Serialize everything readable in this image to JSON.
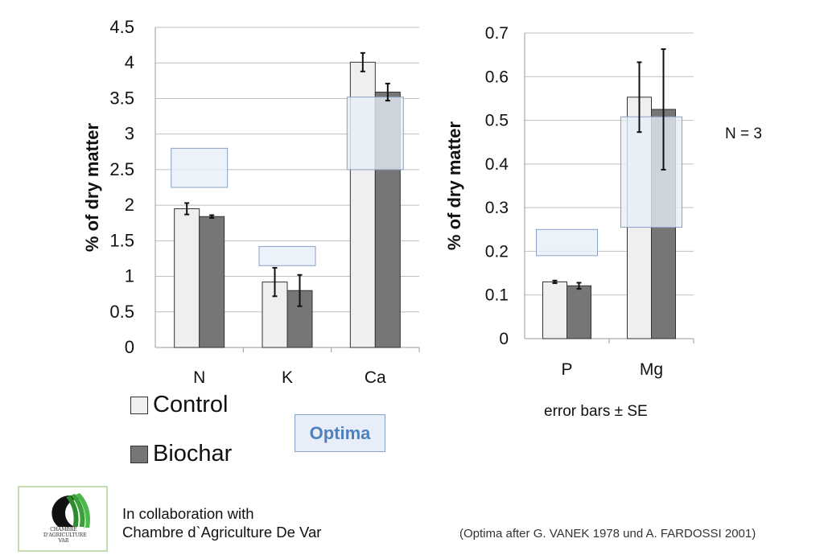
{
  "colors": {
    "control": "#efefef",
    "biochar": "#767676",
    "optima_fill": "#e7eef9",
    "optima_border": "#8aa2c4",
    "optima_text": "#4f81bd",
    "grid": "#bfbfbf",
    "logo_border": "#c4ddb0"
  },
  "legend": {
    "control_label": "Control",
    "biochar_label": "Biochar",
    "optima_label": "Optima"
  },
  "notes": {
    "error_bars": "error bars ± SE",
    "n": "N = 3",
    "collab_line1": "In collaboration with",
    "collab_line2": "Chambre d`Agriculture De Var",
    "source": "(Optima after G. VANEK 1978 und A. FARDOSSI 2001)"
  },
  "logo": {
    "icon": "chambre-agriculture-logo",
    "text_line1": "CHAMBRE",
    "text_line2": "D'AGRICULTURE",
    "text_line3": "VAR"
  },
  "chart_data": [
    {
      "type": "bar",
      "ylabel": "% of dry matter",
      "ylim": [
        0,
        4.5
      ],
      "ytick_labels": [
        "0",
        "0.5",
        "1",
        "1.5",
        "2",
        "2.5",
        "3",
        "3.5",
        "4",
        "4.5"
      ],
      "grid": true,
      "categories": [
        "N",
        "K",
        "Ca"
      ],
      "series": [
        {
          "name": "Control",
          "values": [
            1.95,
            0.92,
            4.01
          ],
          "errors": [
            0.08,
            0.2,
            0.13
          ]
        },
        {
          "name": "Biochar",
          "values": [
            1.84,
            0.8,
            3.59
          ],
          "errors": [
            0.02,
            0.22,
            0.12
          ]
        }
      ],
      "optima": [
        [
          2.25,
          2.8
        ],
        [
          1.15,
          1.42
        ],
        [
          2.5,
          3.52
        ]
      ]
    },
    {
      "type": "bar",
      "ylabel": "% of dry matter",
      "ylim": [
        0,
        0.7
      ],
      "ytick_labels": [
        "0",
        "0.1",
        "0.2",
        "0.3",
        "0.4",
        "0.5",
        "0.6",
        "0.7"
      ],
      "grid": true,
      "categories": [
        "P",
        "Mg"
      ],
      "series": [
        {
          "name": "Control",
          "values": [
            0.13,
            0.553
          ],
          "errors": [
            0.003,
            0.08
          ]
        },
        {
          "name": "Biochar",
          "values": [
            0.121,
            0.525
          ],
          "errors": [
            0.007,
            0.138
          ]
        }
      ],
      "optima": [
        [
          0.19,
          0.25
        ],
        [
          0.255,
          0.508
        ]
      ]
    }
  ]
}
